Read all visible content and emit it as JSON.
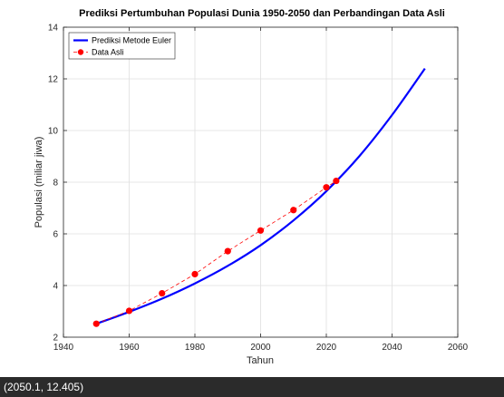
{
  "chart_data": {
    "type": "line",
    "title": "Prediksi Pertumbuhan Populasi Dunia 1950-2050 dan Perbandingan Data Asli",
    "xlabel": "Tahun",
    "ylabel": "Populasi (miliar jiwa)",
    "xlim": [
      1940,
      2060
    ],
    "ylim": [
      2,
      14
    ],
    "xticks": [
      1940,
      1960,
      1980,
      2000,
      2020,
      2040,
      2060
    ],
    "yticks": [
      2,
      4,
      6,
      8,
      10,
      12,
      14
    ],
    "grid": true,
    "legend_position": "top-left",
    "series": [
      {
        "name": "Prediksi Metode Euler",
        "style": "solid-line",
        "color": "#0000ff",
        "x": [
          1950,
          1960,
          1970,
          1980,
          1990,
          2000,
          2010,
          2020,
          2030,
          2040,
          2050
        ],
        "y": [
          2.52,
          2.98,
          3.49,
          4.08,
          4.76,
          5.56,
          6.52,
          7.65,
          9.0,
          10.6,
          12.4
        ]
      },
      {
        "name": "Data Asli",
        "style": "dashed-line-circle-markers",
        "color": "#ff0000",
        "x": [
          1950,
          1960,
          1970,
          1980,
          1990,
          2000,
          2010,
          2020,
          2023
        ],
        "y": [
          2.52,
          3.02,
          3.7,
          4.44,
          5.33,
          6.13,
          6.92,
          7.8,
          8.05
        ]
      }
    ]
  },
  "status_bar": {
    "coordinate_readout": "(2050.1, 12.405)"
  }
}
